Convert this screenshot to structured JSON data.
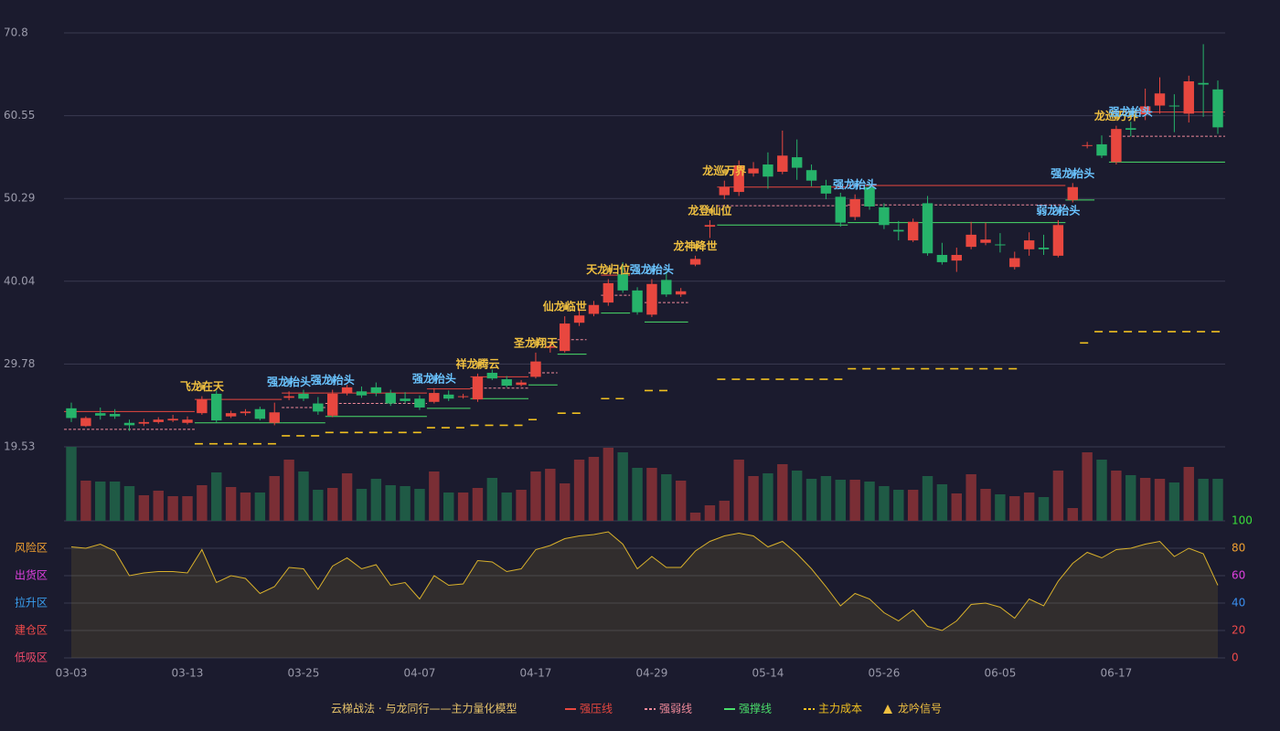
{
  "chart_data": {
    "type": "candlestick",
    "categories": [
      "03-03",
      null,
      null,
      null,
      null,
      null,
      null,
      null,
      "03-13",
      null,
      null,
      null,
      null,
      null,
      null,
      null,
      "03-25",
      null,
      null,
      null,
      null,
      null,
      null,
      null,
      "04-07",
      null,
      null,
      null,
      null,
      null,
      null,
      null,
      "04-17",
      null,
      null,
      null,
      null,
      null,
      null,
      null,
      "04-29",
      null,
      null,
      null,
      null,
      null,
      null,
      null,
      "05-14",
      null,
      null,
      null,
      null,
      null,
      null,
      null,
      "05-26",
      null,
      null,
      null,
      null,
      null,
      null,
      null,
      "06-05",
      null,
      null,
      null,
      null,
      null,
      null,
      null,
      "06-17",
      null,
      null,
      null,
      null,
      null,
      null,
      null
    ],
    "candles": [
      [
        24.3,
        25.0,
        22.6,
        23.1
      ],
      [
        22.1,
        23.3,
        22.0,
        23.1
      ],
      [
        23.7,
        24.4,
        22.9,
        23.4
      ],
      [
        23.6,
        24.2,
        23.0,
        23.3
      ],
      [
        22.5,
        22.9,
        21.5,
        22.2
      ],
      [
        22.4,
        23.0,
        22.1,
        22.6
      ],
      [
        22.6,
        23.2,
        22.4,
        22.9
      ],
      [
        22.8,
        23.5,
        22.6,
        23.0
      ],
      [
        22.5,
        23.3,
        22.3,
        22.9
      ],
      [
        23.7,
        25.8,
        23.5,
        25.4
      ],
      [
        26.1,
        26.5,
        22.5,
        22.8
      ],
      [
        23.3,
        24.0,
        23.1,
        23.7
      ],
      [
        23.7,
        24.2,
        23.4,
        23.9
      ],
      [
        24.2,
        24.5,
        22.8,
        23.0
      ],
      [
        22.5,
        25.0,
        22.2,
        23.8
      ],
      [
        25.6,
        26.4,
        25.3,
        25.8
      ],
      [
        26.1,
        26.6,
        25.2,
        25.5
      ],
      [
        24.9,
        25.7,
        23.5,
        23.9
      ],
      [
        23.4,
        26.6,
        23.2,
        26.1
      ],
      [
        26.2,
        27.2,
        25.9,
        26.9
      ],
      [
        26.4,
        27.0,
        25.6,
        25.9
      ],
      [
        26.9,
        27.5,
        25.8,
        26.2
      ],
      [
        26.2,
        26.6,
        24.6,
        24.9
      ],
      [
        25.5,
        26.3,
        24.9,
        25.2
      ],
      [
        25.5,
        25.9,
        24.1,
        24.4
      ],
      [
        25.1,
        26.8,
        24.9,
        26.2
      ],
      [
        26.0,
        26.5,
        25.2,
        25.5
      ],
      [
        25.7,
        26.1,
        25.5,
        25.8
      ],
      [
        25.4,
        28.6,
        25.1,
        28.2
      ],
      [
        28.7,
        29.1,
        27.8,
        28.0
      ],
      [
        27.9,
        28.3,
        26.9,
        27.1
      ],
      [
        27.2,
        27.8,
        27.0,
        27.5
      ],
      [
        28.2,
        31.2,
        28.0,
        30.1
      ],
      [
        31.8,
        32.6,
        31.2,
        32.0
      ],
      [
        31.4,
        35.7,
        31.2,
        34.8
      ],
      [
        34.9,
        36.7,
        34.5,
        35.8
      ],
      [
        36.0,
        37.6,
        35.7,
        37.1
      ],
      [
        37.4,
        40.3,
        37.0,
        39.8
      ],
      [
        40.9,
        42.4,
        38.6,
        38.9
      ],
      [
        38.9,
        39.3,
        35.9,
        36.2
      ],
      [
        35.9,
        40.3,
        35.6,
        39.7
      ],
      [
        40.2,
        41.3,
        38.1,
        38.4
      ],
      [
        38.4,
        39.2,
        38.1,
        38.8
      ],
      [
        42.1,
        43.2,
        41.9,
        42.8
      ],
      [
        46.8,
        47.6,
        45.4,
        47.0
      ],
      [
        50.7,
        52.5,
        50.2,
        51.7
      ],
      [
        51.1,
        55.0,
        50.6,
        54.4
      ],
      [
        53.4,
        54.8,
        53.0,
        54.0
      ],
      [
        54.5,
        56.0,
        51.5,
        53.0
      ],
      [
        53.6,
        58.7,
        53.3,
        55.6
      ],
      [
        55.4,
        57.6,
        52.6,
        54.1
      ],
      [
        53.8,
        54.5,
        51.8,
        52.5
      ],
      [
        51.9,
        52.6,
        50.2,
        50.9
      ],
      [
        50.5,
        51.0,
        46.8,
        47.3
      ],
      [
        48.0,
        50.8,
        47.6,
        50.2
      ],
      [
        51.7,
        52.3,
        48.9,
        49.3
      ],
      [
        49.2,
        49.7,
        46.5,
        47.0
      ],
      [
        46.4,
        47.5,
        45.1,
        46.2
      ],
      [
        45.1,
        47.8,
        44.9,
        47.4
      ],
      [
        49.7,
        50.6,
        43.2,
        43.5
      ],
      [
        43.3,
        44.8,
        42.1,
        42.4
      ],
      [
        42.6,
        44.2,
        41.2,
        43.3
      ],
      [
        44.3,
        47.4,
        44.0,
        45.8
      ],
      [
        44.8,
        47.3,
        44.5,
        45.2
      ],
      [
        44.6,
        46.0,
        43.6,
        44.5
      ],
      [
        41.8,
        43.7,
        41.5,
        42.9
      ],
      [
        44.0,
        46.1,
        43.2,
        45.1
      ],
      [
        44.2,
        45.8,
        43.3,
        44.0
      ],
      [
        43.2,
        47.6,
        43.0,
        47.0
      ],
      [
        50.1,
        52.2,
        49.8,
        51.7
      ],
      [
        56.8,
        57.3,
        56.5,
        56.9
      ],
      [
        57.0,
        58.1,
        55.3,
        55.6
      ],
      [
        54.8,
        59.3,
        54.5,
        58.9
      ],
      [
        59.0,
        59.8,
        58.0,
        58.8
      ],
      [
        60.7,
        63.9,
        60.0,
        61.7
      ],
      [
        61.8,
        65.3,
        60.8,
        63.3
      ],
      [
        61.8,
        63.2,
        58.5,
        61.7
      ],
      [
        60.8,
        65.5,
        59.7,
        64.8
      ],
      [
        64.6,
        69.4,
        60.4,
        64.4
      ],
      [
        63.8,
        64.9,
        58.3,
        59.1
      ]
    ],
    "up_color": "#e8473f",
    "down_color": "#26b36a",
    "up_volume_color": "#7a2e35",
    "down_volume_color": "#1f5a45",
    "ylim": [
      19.53,
      70.8
    ],
    "yticks": [
      19.53,
      29.78,
      40.04,
      50.29,
      60.55,
      70.8
    ],
    "grid": true,
    "volume": [
      81,
      44,
      43,
      43,
      38,
      28,
      33,
      27,
      27,
      39,
      53,
      37,
      31,
      31,
      49,
      67,
      54,
      34,
      36,
      52,
      35,
      46,
      39,
      38,
      35,
      54,
      31,
      31,
      36,
      47,
      31,
      34,
      54,
      57,
      41,
      67,
      70,
      80,
      75,
      58,
      58,
      51,
      44,
      9,
      17,
      22,
      67,
      49,
      52,
      62,
      55,
      46,
      49,
      45,
      45,
      43,
      38,
      34,
      34,
      49,
      40,
      30,
      51,
      35,
      29,
      27,
      31,
      26,
      55,
      14,
      75,
      67,
      55,
      50,
      47,
      46,
      42,
      59,
      46,
      46
    ],
    "volume_ylim": [
      0,
      81
    ],
    "oscillator": {
      "values": [
        81,
        80,
        83,
        78,
        60,
        62,
        63,
        63,
        62,
        79,
        55,
        60,
        58,
        47,
        52,
        66,
        65,
        50,
        67,
        73,
        65,
        68,
        53,
        55,
        43,
        60,
        53,
        54,
        71,
        70,
        63,
        65,
        79,
        82,
        87,
        89,
        90,
        92,
        83,
        65,
        74,
        66,
        66,
        78,
        85,
        89,
        91,
        89,
        81,
        85,
        76,
        65,
        52,
        38,
        47,
        43,
        33,
        27,
        35,
        23,
        20,
        27,
        39,
        40,
        37,
        29,
        43,
        38,
        56,
        69,
        77,
        73,
        79,
        80,
        83,
        85,
        74,
        80,
        76,
        53
      ],
      "color": "#d9b12b",
      "ylim": [
        0,
        100
      ],
      "yticks": [
        0,
        20,
        40,
        60,
        80,
        100
      ],
      "ytick_colors": [
        "#f04a4a",
        "#f04a4a",
        "#3a8ff0",
        "#e040e0",
        "#f0a030",
        "#3adf3a"
      ],
      "zones": [
        {
          "label": "风险区",
          "value": 80,
          "color": "#f0a030"
        },
        {
          "label": "出货区",
          "value": 60,
          "color": "#e040e0"
        },
        {
          "label": "拉升区",
          "value": 40,
          "color": "#3a9ff0"
        },
        {
          "label": "建仓区",
          "value": 20,
          "color": "#f04a4a"
        },
        {
          "label": "低吸区",
          "value": 0,
          "color": "#f04a6a"
        }
      ]
    },
    "model_name": "云梯战法 · 与龙同行——主力量化模型",
    "lines": [
      {
        "name": "强压线",
        "color": "#e8473f",
        "style": "solid",
        "segments": [
          [
            0,
            8,
            23.9
          ],
          [
            9,
            14,
            25.4
          ],
          [
            15,
            17,
            26.2
          ],
          [
            18,
            24,
            26.2
          ],
          [
            25,
            27,
            26.7
          ],
          [
            28,
            31,
            28.2
          ],
          [
            37,
            38,
            40.8
          ],
          [
            45,
            53,
            51.7
          ],
          [
            54,
            68,
            51.9
          ],
          [
            72,
            79,
            61.0
          ]
        ]
      },
      {
        "name": "强弱线",
        "color": "#f08a9a",
        "style": "dashed",
        "segments": [
          [
            0,
            8,
            21.7
          ],
          [
            15,
            17,
            24.4
          ],
          [
            18,
            24,
            24.9
          ],
          [
            28,
            31,
            26.8
          ],
          [
            32,
            33,
            28.7
          ],
          [
            34,
            35,
            32.8
          ],
          [
            37,
            38,
            38.3
          ],
          [
            40,
            42,
            37.4
          ],
          [
            45,
            53,
            49.4
          ],
          [
            54,
            68,
            49.5
          ],
          [
            72,
            79,
            58.0
          ]
        ]
      },
      {
        "name": "强撑线",
        "color": "#4ade6a",
        "style": "solid",
        "segments": [
          [
            9,
            14,
            22.5
          ],
          [
            15,
            17,
            22.5
          ],
          [
            18,
            24,
            23.3
          ],
          [
            25,
            27,
            24.3
          ],
          [
            28,
            31,
            25.5
          ],
          [
            32,
            33,
            27.2
          ],
          [
            34,
            35,
            31.0
          ],
          [
            37,
            38,
            36.1
          ],
          [
            40,
            42,
            35.0
          ],
          [
            45,
            53,
            47.0
          ],
          [
            54,
            68,
            47.3
          ],
          [
            69,
            70,
            50.1
          ],
          [
            72,
            79,
            54.8
          ]
        ]
      },
      {
        "name": "主力成本",
        "color": "#f0c020",
        "style": "cost",
        "segments": [
          [
            9,
            14,
            19.9
          ],
          [
            15,
            17,
            20.9
          ],
          [
            18,
            24,
            21.3
          ],
          [
            25,
            27,
            21.9
          ],
          [
            28,
            31,
            22.2
          ],
          [
            32,
            32,
            22.9
          ],
          [
            34,
            35,
            23.7
          ],
          [
            37,
            38,
            25.5
          ],
          [
            40,
            41,
            26.5
          ],
          [
            45,
            53,
            27.9
          ],
          [
            54,
            65,
            29.2
          ],
          [
            70,
            70,
            32.4
          ],
          [
            71,
            79,
            33.8
          ]
        ]
      }
    ],
    "signal_name": "龙吟信号",
    "signal_color": "#f0c040",
    "signals": [
      {
        "index": 9,
        "text": "飞龙在天",
        "color": "#f0c040"
      },
      {
        "index": 15,
        "text": "强龙抬头",
        "color": "#6ac4ff"
      },
      {
        "index": 18,
        "text": "强龙抬头",
        "color": "#6ac4ff"
      },
      {
        "index": 25,
        "text": "强龙抬头",
        "color": "#6ac4ff"
      },
      {
        "index": 28,
        "text": "祥龙腾云",
        "color": "#f0c040"
      },
      {
        "index": 32,
        "text": "圣龙翔天",
        "color": "#f0c040"
      },
      {
        "index": 34,
        "text": "仙龙临世",
        "color": "#f0c040"
      },
      {
        "index": 37,
        "text": "天龙归位",
        "color": "#f0c040"
      },
      {
        "index": 40,
        "text": "强龙抬头",
        "color": "#6ac4ff"
      },
      {
        "index": 43,
        "text": "龙神降世",
        "color": "#f0c040"
      },
      {
        "index": 44,
        "text": "龙登仙位",
        "color": "#f0c040"
      },
      {
        "index": 45,
        "text": "龙巡万界",
        "color": "#f0c040"
      },
      {
        "index": 54,
        "text": "强龙抬头",
        "color": "#6ac4ff"
      },
      {
        "index": 68,
        "text": "弱龙抬头",
        "color": "#6ac4ff"
      },
      {
        "index": 69,
        "text": "强龙抬头",
        "color": "#6ac4ff"
      },
      {
        "index": 72,
        "text": "龙巡万界",
        "color": "#f0c040"
      },
      {
        "index": 73,
        "text": "强龙抬头",
        "color": "#6ac4ff"
      }
    ]
  }
}
